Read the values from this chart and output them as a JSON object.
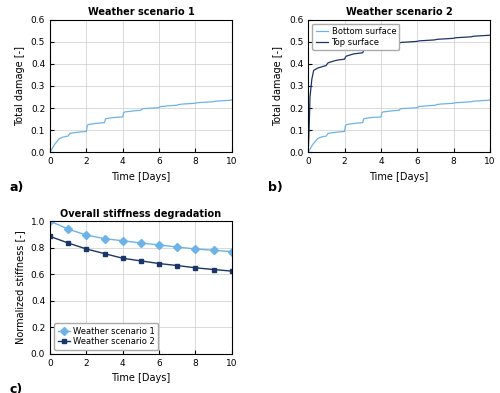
{
  "title_a": "Weather scenario 1",
  "title_b": "Weather scenario 2",
  "title_c": "Overall stiffness degradation",
  "xlabel": "Time [Days]",
  "ylabel_damage": "Total damage [-]",
  "ylabel_stiffness": "Normalized stiffness [-]",
  "label_a": "a)",
  "label_b": "b)",
  "label_c": "c)",
  "color_light_blue": "#6db3e8",
  "color_dark_blue": "#1a3568",
  "legend_b_bottom": "Bottom surface",
  "legend_b_top": "Top surface",
  "legend_c_1": "Weather scenario 1",
  "legend_c_2": "Weather scenario 2",
  "xlim": [
    0,
    10
  ],
  "ylim_damage": [
    0,
    0.6
  ],
  "ylim_stiffness": [
    0,
    1.0
  ],
  "yticks_damage": [
    0.0,
    0.1,
    0.2,
    0.3,
    0.4,
    0.5,
    0.6
  ],
  "yticks_stiffness": [
    0.0,
    0.2,
    0.4,
    0.6,
    0.8,
    1.0
  ],
  "xticks": [
    0,
    2,
    4,
    6,
    8,
    10
  ],
  "sc1_time": [
    0,
    0.25,
    0.4,
    0.5,
    0.6,
    0.7,
    0.8,
    0.9,
    1.0,
    1.05,
    1.1,
    1.3,
    1.5,
    1.7,
    1.9,
    2.0,
    2.05,
    2.1,
    2.3,
    2.5,
    2.7,
    2.9,
    3.0,
    3.05,
    3.1,
    3.3,
    3.5,
    3.7,
    3.9,
    4.0,
    4.05,
    4.1,
    4.3,
    4.5,
    4.7,
    4.9,
    5.0,
    5.05,
    5.1,
    5.3,
    5.5,
    5.7,
    5.9,
    6.0,
    6.05,
    6.1,
    6.3,
    6.5,
    6.7,
    6.9,
    7.0,
    7.05,
    7.1,
    7.3,
    7.5,
    7.7,
    7.9,
    8.0,
    8.05,
    8.1,
    8.3,
    8.5,
    8.7,
    8.9,
    9.0,
    9.05,
    9.1,
    9.3,
    9.5,
    9.7,
    9.9,
    10.0
  ],
  "sc1_damage": [
    0.0,
    0.035,
    0.05,
    0.06,
    0.065,
    0.068,
    0.07,
    0.072,
    0.073,
    0.08,
    0.085,
    0.088,
    0.09,
    0.092,
    0.093,
    0.094,
    0.12,
    0.125,
    0.128,
    0.13,
    0.132,
    0.133,
    0.134,
    0.15,
    0.152,
    0.155,
    0.157,
    0.158,
    0.159,
    0.16,
    0.178,
    0.182,
    0.184,
    0.186,
    0.188,
    0.189,
    0.19,
    0.195,
    0.197,
    0.198,
    0.199,
    0.2,
    0.201,
    0.202,
    0.205,
    0.207,
    0.208,
    0.21,
    0.211,
    0.212,
    0.213,
    0.215,
    0.216,
    0.218,
    0.219,
    0.22,
    0.221,
    0.222,
    0.223,
    0.224,
    0.225,
    0.226,
    0.227,
    0.228,
    0.229,
    0.23,
    0.231,
    0.232,
    0.233,
    0.234,
    0.235,
    0.237
  ],
  "sc2_bot_time": [
    0,
    0.25,
    0.4,
    0.5,
    0.6,
    0.7,
    0.8,
    0.9,
    1.0,
    1.05,
    1.1,
    1.3,
    1.5,
    1.7,
    1.9,
    2.0,
    2.05,
    2.1,
    2.3,
    2.5,
    2.7,
    2.9,
    3.0,
    3.05,
    3.1,
    3.3,
    3.5,
    3.7,
    3.9,
    4.0,
    4.05,
    4.1,
    4.3,
    4.5,
    4.7,
    4.9,
    5.0,
    5.05,
    5.1,
    5.3,
    5.5,
    5.7,
    5.9,
    6.0,
    6.05,
    6.1,
    6.3,
    6.5,
    6.7,
    6.9,
    7.0,
    7.05,
    7.1,
    7.3,
    7.5,
    7.7,
    7.9,
    8.0,
    8.05,
    8.1,
    8.3,
    8.5,
    8.7,
    8.9,
    9.0,
    9.05,
    9.1,
    9.3,
    9.5,
    9.7,
    9.9,
    10.0
  ],
  "sc2_bot_damage": [
    0.0,
    0.035,
    0.05,
    0.06,
    0.065,
    0.068,
    0.07,
    0.072,
    0.073,
    0.08,
    0.085,
    0.088,
    0.09,
    0.092,
    0.093,
    0.094,
    0.12,
    0.125,
    0.128,
    0.13,
    0.132,
    0.133,
    0.134,
    0.15,
    0.152,
    0.155,
    0.157,
    0.158,
    0.159,
    0.16,
    0.178,
    0.182,
    0.184,
    0.186,
    0.188,
    0.189,
    0.19,
    0.195,
    0.197,
    0.198,
    0.199,
    0.2,
    0.201,
    0.202,
    0.205,
    0.207,
    0.208,
    0.21,
    0.211,
    0.212,
    0.213,
    0.215,
    0.216,
    0.218,
    0.219,
    0.22,
    0.221,
    0.222,
    0.223,
    0.224,
    0.225,
    0.226,
    0.227,
    0.228,
    0.229,
    0.23,
    0.231,
    0.232,
    0.233,
    0.234,
    0.235,
    0.237
  ],
  "sc2_top_time": [
    0,
    0.05,
    0.1,
    0.2,
    0.3,
    0.4,
    0.5,
    0.6,
    0.7,
    0.8,
    0.9,
    1.0,
    1.05,
    1.1,
    1.3,
    1.5,
    1.7,
    1.9,
    2.0,
    2.05,
    2.1,
    2.3,
    2.5,
    2.7,
    2.9,
    3.0,
    3.05,
    3.1,
    3.3,
    3.5,
    3.7,
    3.9,
    4.0,
    4.05,
    4.1,
    4.3,
    4.5,
    4.7,
    4.9,
    5.0,
    5.05,
    5.1,
    5.3,
    5.5,
    5.7,
    5.9,
    6.0,
    6.05,
    6.1,
    6.3,
    6.5,
    6.7,
    6.9,
    7.0,
    7.05,
    7.1,
    7.3,
    7.5,
    7.7,
    7.9,
    8.0,
    8.05,
    8.1,
    8.3,
    8.5,
    8.7,
    8.9,
    9.0,
    9.05,
    9.1,
    9.3,
    9.5,
    9.7,
    9.9,
    10.0
  ],
  "sc2_top_damage": [
    0.0,
    0.1,
    0.25,
    0.33,
    0.37,
    0.375,
    0.38,
    0.383,
    0.385,
    0.388,
    0.39,
    0.393,
    0.4,
    0.405,
    0.41,
    0.415,
    0.418,
    0.42,
    0.421,
    0.43,
    0.435,
    0.44,
    0.445,
    0.447,
    0.449,
    0.45,
    0.46,
    0.462,
    0.465,
    0.468,
    0.469,
    0.47,
    0.471,
    0.478,
    0.48,
    0.483,
    0.486,
    0.488,
    0.49,
    0.491,
    0.495,
    0.497,
    0.498,
    0.499,
    0.5,
    0.501,
    0.502,
    0.503,
    0.504,
    0.505,
    0.506,
    0.507,
    0.508,
    0.509,
    0.51,
    0.511,
    0.512,
    0.513,
    0.514,
    0.515,
    0.516,
    0.517,
    0.518,
    0.519,
    0.52,
    0.521,
    0.522,
    0.523,
    0.524,
    0.525,
    0.526,
    0.527,
    0.528,
    0.529,
    0.53
  ],
  "stiff_time": [
    0,
    1,
    2,
    3,
    4,
    5,
    6,
    7,
    8,
    9,
    10
  ],
  "stiff_sc1": [
    1.0,
    0.94,
    0.895,
    0.868,
    0.852,
    0.835,
    0.82,
    0.805,
    0.79,
    0.78,
    0.77
  ],
  "stiff_sc2": [
    0.885,
    0.835,
    0.79,
    0.755,
    0.72,
    0.7,
    0.68,
    0.665,
    0.648,
    0.635,
    0.623
  ]
}
